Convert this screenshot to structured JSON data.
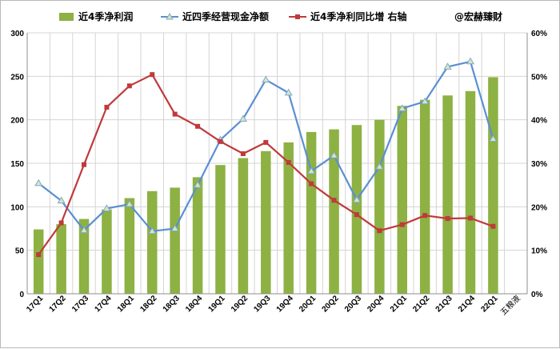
{
  "chart_data": {
    "type": "bar",
    "categories": [
      "17Q1",
      "17Q2",
      "17Q3",
      "17Q4",
      "18Q1",
      "18Q2",
      "18Q3",
      "18Q4",
      "19Q1",
      "19Q2",
      "19Q3",
      "19Q4",
      "20Q1",
      "20Q2",
      "20Q3",
      "20Q4",
      "21Q1",
      "21Q2",
      "21Q3",
      "21Q4",
      "22Q1"
    ],
    "series": [
      {
        "name": "近4季净利润",
        "kind": "bar",
        "axis": "left",
        "color": "#8db143",
        "values": [
          74,
          80,
          86,
          97,
          110,
          118,
          122,
          134,
          148,
          156,
          164,
          174,
          186,
          189,
          194,
          200,
          216,
          223,
          228,
          233,
          249
        ]
      },
      {
        "name": "近四季经营现金净额",
        "kind": "line",
        "axis": "left",
        "color": "#5a8fd4",
        "marker": "triangle",
        "values": [
          127,
          107,
          73,
          98,
          103,
          72,
          75,
          125,
          177,
          201,
          246,
          231,
          141,
          159,
          108,
          146,
          213,
          221,
          261,
          267,
          178
        ]
      },
      {
        "name": "近4季净利同比增 右轴",
        "kind": "line",
        "axis": "right",
        "color": "#c0393b",
        "marker": "square",
        "values": [
          9,
          16.3,
          29.7,
          42.9,
          47.8,
          50.4,
          41.3,
          38.5,
          35,
          32.2,
          34.8,
          30.2,
          25.3,
          21.5,
          18.2,
          14.5,
          15.9,
          18,
          17.3,
          17.4,
          15.5
        ]
      }
    ],
    "ylim": [
      0,
      300
    ],
    "y_ticks": [
      "0",
      "50",
      "100",
      "150",
      "200",
      "250",
      "300"
    ],
    "y2lim": [
      0,
      60
    ],
    "y2_ticks": [
      "0%",
      "10%",
      "20%",
      "30%",
      "40%",
      "50%",
      "60%"
    ],
    "grid": true,
    "legend_position": "top",
    "watermark": "@宏赫臻财",
    "annotation": "五粮液"
  }
}
